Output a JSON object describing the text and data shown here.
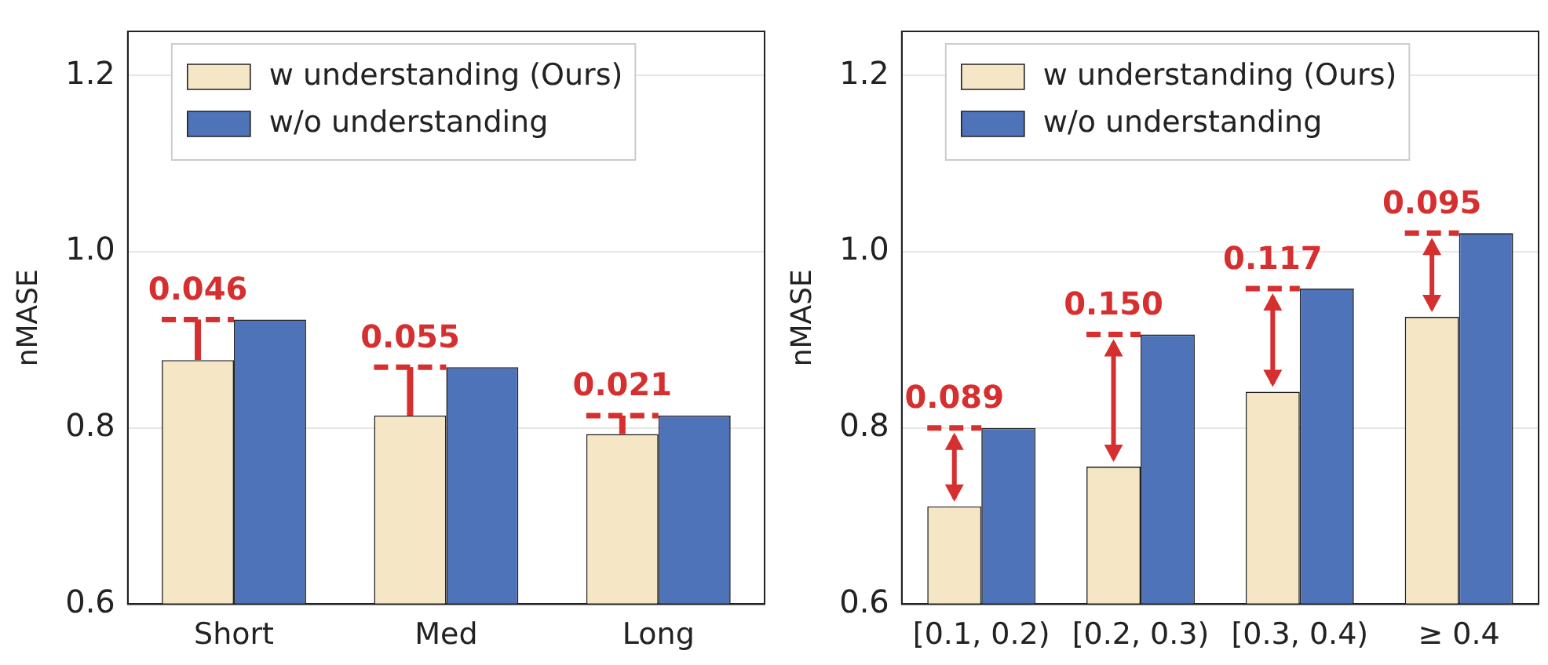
{
  "chart_data": [
    {
      "type": "bar",
      "categories": [
        "Short",
        "Med",
        "Long"
      ],
      "ylabel": "nMASE",
      "ylim": [
        0.6,
        1.25
      ],
      "yticks": [
        0.6,
        0.8,
        {
          "value": 1.0,
          "label": "1.0"
        },
        1.2
      ],
      "grid": "y",
      "legend": "top left",
      "series": [
        {
          "name": "w understanding (Ours)",
          "color": "#f5e6c6",
          "values": [
            0.877,
            0.814,
            0.793
          ]
        },
        {
          "name": "w/o understanding",
          "color": "#4f73b8",
          "values": [
            0.923,
            0.869,
            0.814
          ]
        }
      ],
      "annotations": [
        {
          "text": "0.046",
          "x": "Short",
          "y": 0.923
        },
        {
          "text": "0.055",
          "x": "Med",
          "y": 0.869
        },
        {
          "text": "0.021",
          "x": "Long",
          "y": 0.814
        }
      ]
    },
    {
      "type": "bar",
      "categories": [
        "[0.1, 0.2)",
        "[0.2, 0.3)",
        "[0.3, 0.4)",
        "≥ 0.4"
      ],
      "ylabel": "nMASE",
      "ylim": [
        0.6,
        1.25
      ],
      "yticks": [
        0.6,
        0.8,
        {
          "value": 1.0,
          "label": "1.0"
        },
        1.2
      ],
      "grid": "y",
      "legend": "top left",
      "series": [
        {
          "name": "w understanding (Ours)",
          "color": "#f5e6c6",
          "values": [
            0.711,
            0.756,
            0.841,
            0.926
          ]
        },
        {
          "name": "w/o understanding",
          "color": "#4f73b8",
          "values": [
            0.8,
            0.906,
            0.958,
            1.021
          ]
        }
      ],
      "annotations": [
        {
          "text": "0.089",
          "x": "[0.1, 0.2)",
          "y": 0.8
        },
        {
          "text": "0.150",
          "x": "[0.2, 0.3)",
          "y": 0.906
        },
        {
          "text": "0.117",
          "x": "[0.3, 0.4)",
          "y": 0.958
        },
        {
          "text": "0.095",
          "x": "≥ 0.4",
          "y": 1.021
        }
      ]
    }
  ]
}
